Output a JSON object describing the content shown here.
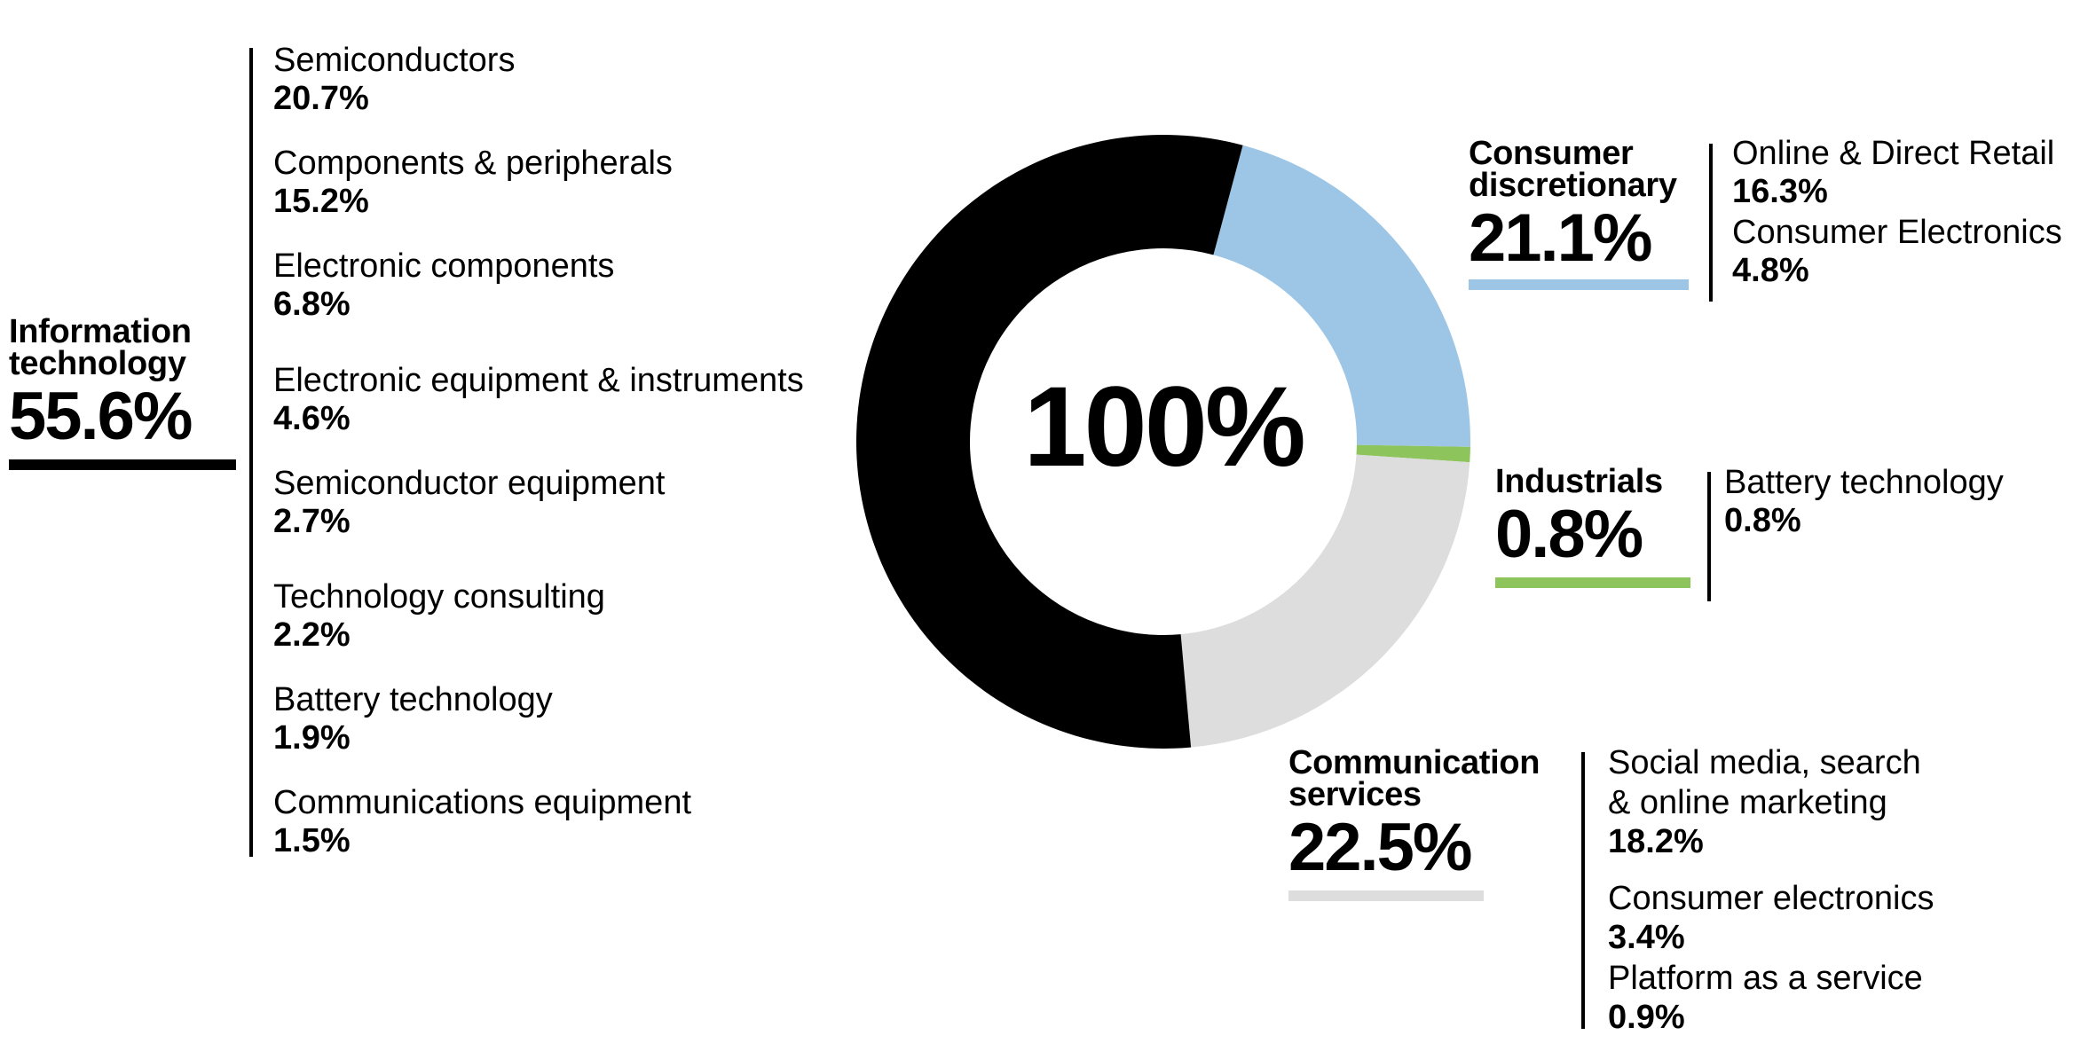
{
  "chart_data": {
    "type": "pie",
    "center_label": "100%",
    "colors": {
      "Information technology": "#000000",
      "Consumer discretionary": "#9dc6e6",
      "Industrials": "#8dc45b",
      "Communication services": "#dcdddc"
    },
    "slices": [
      {
        "name": "Information technology",
        "value": 55.6,
        "value_label": "55.6%",
        "items": [
          {
            "label": "Semiconductors",
            "value": "20.7%"
          },
          {
            "label": "Components & peripherals",
            "value": "15.2%"
          },
          {
            "label": "Electronic components",
            "value": "6.8%"
          },
          {
            "label": "Electronic equipment & instruments",
            "value": "4.6%"
          },
          {
            "label": "Semiconductor equipment",
            "value": "2.7%"
          },
          {
            "label": "Technology consulting",
            "value": "2.2%"
          },
          {
            "label": "Battery technology",
            "value": "1.9%"
          },
          {
            "label": "Communications equipment",
            "value": "1.5%"
          }
        ]
      },
      {
        "name": "Consumer discretionary",
        "value": 21.1,
        "value_label": "21.1%",
        "items": [
          {
            "label": "Online & Direct Retail",
            "value": "16.3%"
          },
          {
            "label": "Consumer Electronics",
            "value": "4.8%"
          }
        ]
      },
      {
        "name": "Industrials",
        "value": 0.8,
        "value_label": "0.8%",
        "items": [
          {
            "label": "Battery technology",
            "value": "0.8%"
          }
        ]
      },
      {
        "name": "Communication services",
        "value": 22.5,
        "value_label": "22.5%",
        "items": [
          {
            "label": "Social media, search\n& online marketing",
            "value": "18.2%"
          },
          {
            "label": "Consumer electronics",
            "value": "3.4%"
          },
          {
            "label": "Platform as a service",
            "value": "0.9%"
          }
        ]
      }
    ]
  },
  "sector_titles": {
    "it": "Information\ntechnology",
    "cd": "Consumer\ndiscretionary",
    "ind": "Industrials",
    "cs": "Communication\nservices"
  }
}
